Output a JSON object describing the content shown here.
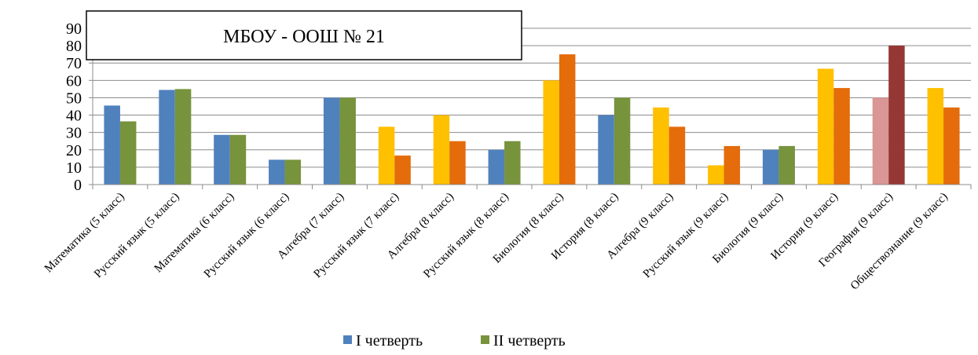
{
  "chart_data": {
    "type": "bar",
    "title": "МБОУ - ООШ № 21",
    "xlabel": "",
    "ylabel": "",
    "ylim": [
      0,
      90
    ],
    "yticks": [
      0,
      10,
      20,
      30,
      40,
      50,
      60,
      70,
      80,
      90
    ],
    "grid": true,
    "legend_position": "bottom",
    "categories": [
      "Математика (5 класс)",
      "Русский язык (5 класс)",
      "Математика (6 класс)",
      "Русский язык (6 класс)",
      "Алгебра (7 класс)",
      "Русский язык (7 класс)",
      "Алгебра (8 класс)",
      "Русский язык (8 класс)",
      "Биология (8 класс)",
      "История (8 класс)",
      "Алгебра (9 класс)",
      "Русский язык (9 класс)",
      "Биология (9 класс)",
      "История (9 класс)",
      "География (9 класс)",
      "Обществознание (9 класс)"
    ],
    "series": [
      {
        "name": "I четверть",
        "color": "#4F81BD",
        "values": [
          45.5,
          54.5,
          28.6,
          14.3,
          50,
          33.3,
          40,
          20,
          60,
          40,
          44.4,
          11.1,
          20,
          66.7,
          50,
          55.6
        ]
      },
      {
        "name": "II четверть",
        "color": "#77933C",
        "values": [
          36.4,
          55,
          28.6,
          14.3,
          50,
          16.7,
          25,
          25,
          75,
          50,
          33.3,
          22.2,
          22.2,
          55.6,
          80,
          44.4
        ]
      }
    ],
    "bar_colors": [
      [
        "#4F81BD",
        "#77933C"
      ],
      [
        "#4F81BD",
        "#77933C"
      ],
      [
        "#4F81BD",
        "#77933C"
      ],
      [
        "#4F81BD",
        "#77933C"
      ],
      [
        "#4F81BD",
        "#77933C"
      ],
      [
        "#FFC000",
        "#E46C0A"
      ],
      [
        "#FFC000",
        "#E46C0A"
      ],
      [
        "#4F81BD",
        "#77933C"
      ],
      [
        "#FFC000",
        "#E46C0A"
      ],
      [
        "#4F81BD",
        "#77933C"
      ],
      [
        "#FFC000",
        "#E46C0A"
      ],
      [
        "#FFC000",
        "#E46C0A"
      ],
      [
        "#4F81BD",
        "#77933C"
      ],
      [
        "#FFC000",
        "#E46C0A"
      ],
      [
        "#D99694",
        "#953735"
      ],
      [
        "#FFC000",
        "#E46C0A"
      ]
    ]
  }
}
